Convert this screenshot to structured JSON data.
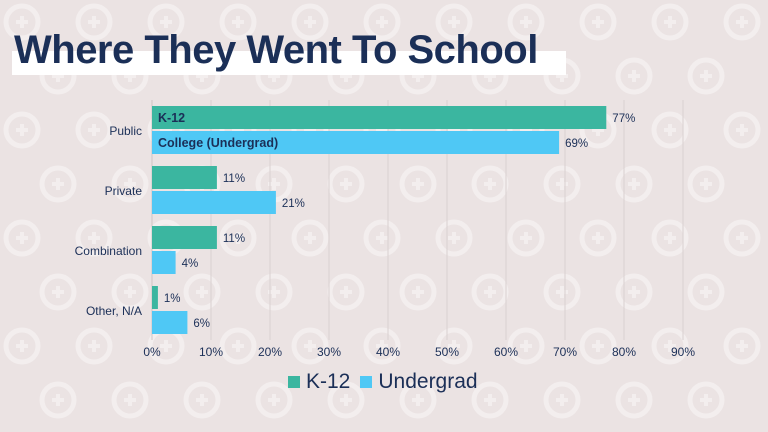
{
  "title": "Where They Went To School",
  "colors": {
    "k12": "#3bb6a0",
    "undergrad": "#4fc8f5",
    "text": "#1b2f57",
    "background": "#ebe3e3"
  },
  "chart_data": {
    "type": "bar",
    "orientation": "horizontal",
    "title": "Where They Went To School",
    "categories": [
      "Public",
      "Private",
      "Combination",
      "Other, N/A"
    ],
    "series": [
      {
        "name": "K-12",
        "values": [
          77,
          11,
          11,
          1
        ],
        "color": "#3bb6a0",
        "bar_label": "K-12"
      },
      {
        "name": "Undergrad",
        "values": [
          69,
          21,
          4,
          6
        ],
        "color": "#4fc8f5",
        "bar_label": "College (Undergrad)"
      }
    ],
    "xlim": [
      0,
      90
    ],
    "xticks": [
      "0%",
      "10%",
      "20%",
      "30%",
      "40%",
      "50%",
      "60%",
      "70%",
      "80%",
      "90%"
    ],
    "value_suffix": "%",
    "grid": true,
    "legend_placement": "bottom"
  }
}
